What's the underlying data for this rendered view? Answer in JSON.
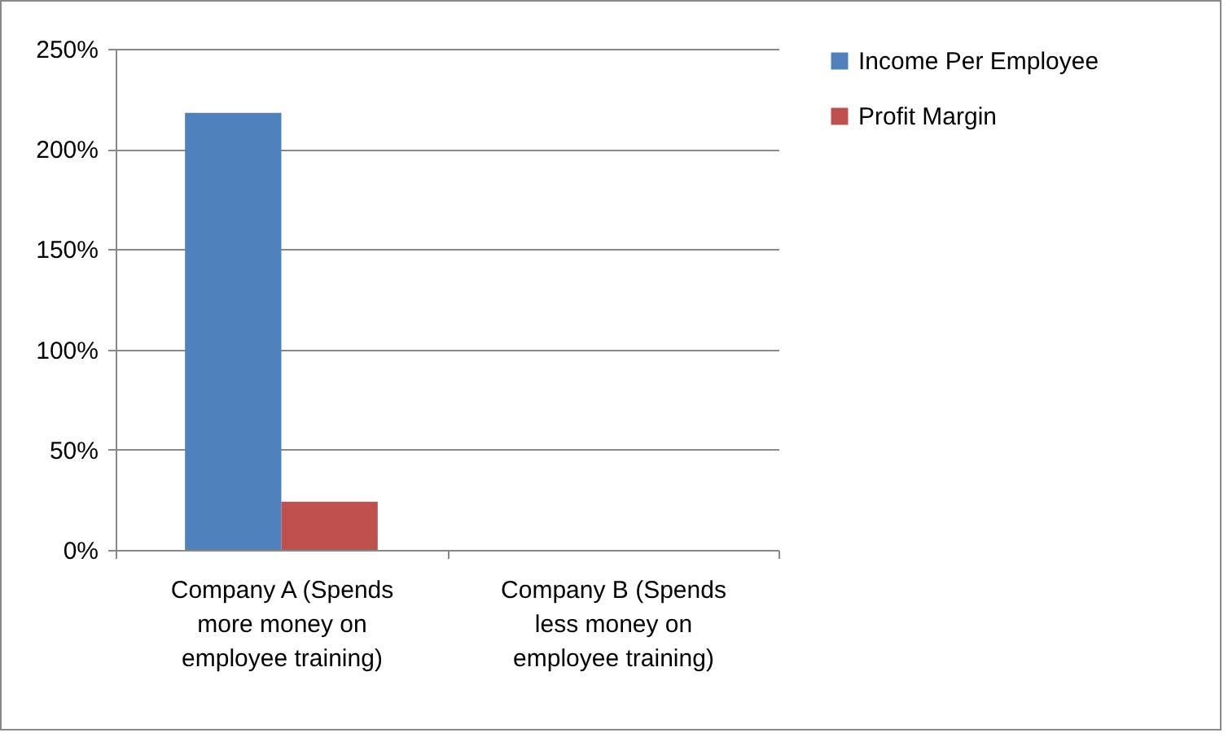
{
  "chart_data": {
    "type": "bar",
    "categories": [
      "Company A (Spends more money on employee training)",
      "Company B (Spends less money on employee training)"
    ],
    "series": [
      {
        "name": "Income Per Employee",
        "color": "#4f81bd",
        "values": [
          218,
          null
        ]
      },
      {
        "name": "Profit Margin",
        "color": "#c0504d",
        "values": [
          24,
          null
        ]
      }
    ],
    "ylim": [
      0,
      250
    ],
    "yticks": [
      {
        "value": 0,
        "label": "0%"
      },
      {
        "value": 50,
        "label": "50%"
      },
      {
        "value": 100,
        "label": "100%"
      },
      {
        "value": 150,
        "label": "150%"
      },
      {
        "value": 200,
        "label": "200%"
      },
      {
        "value": 250,
        "label": "250%"
      }
    ],
    "grid": "y",
    "legend": "right"
  }
}
